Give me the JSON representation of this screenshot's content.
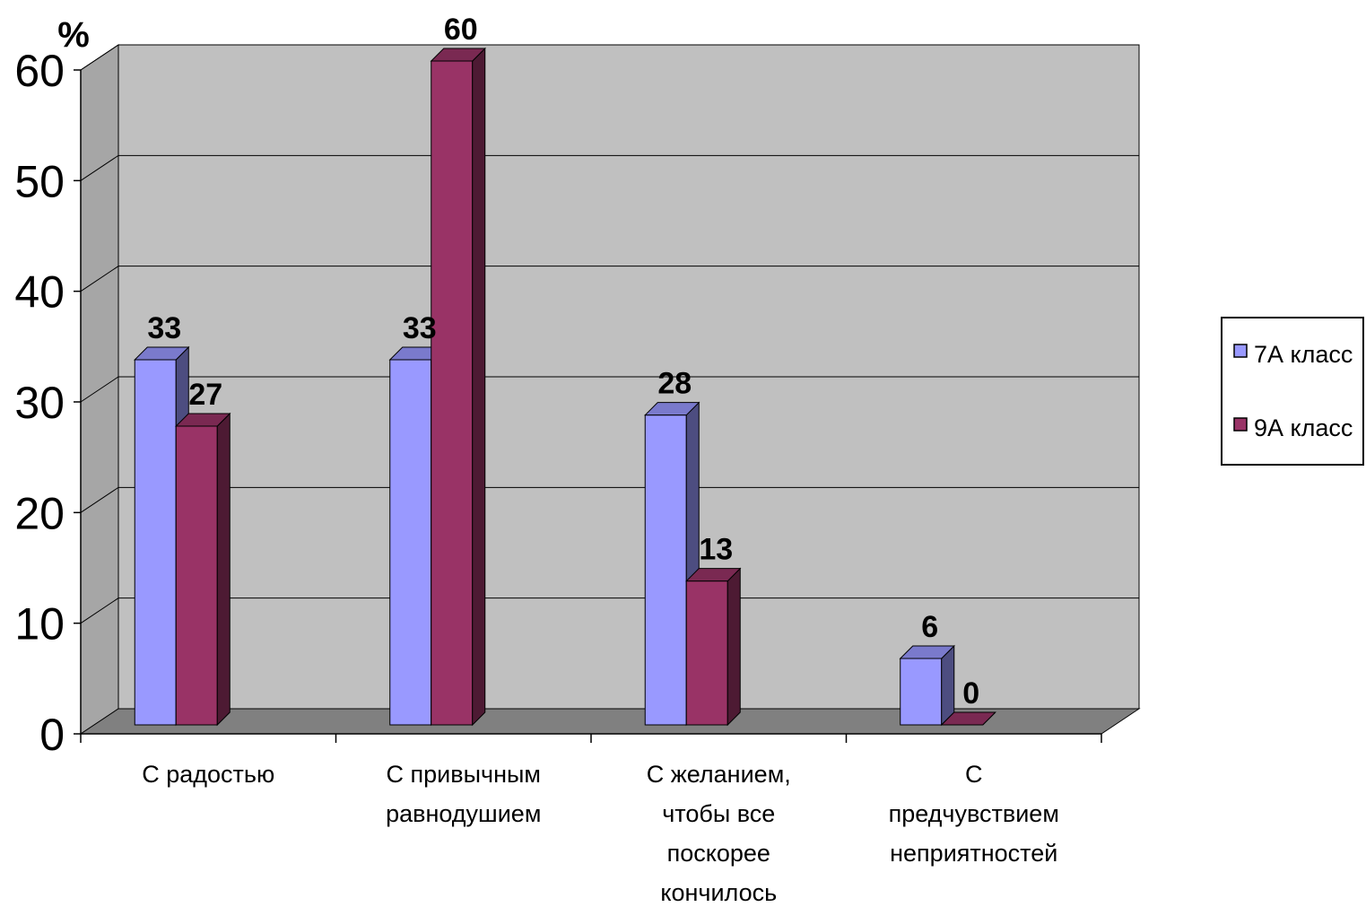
{
  "chart_data": {
    "type": "bar",
    "unit_label": "%",
    "categories": [
      [
        "С радостью"
      ],
      [
        "С привычным",
        "равнодушием"
      ],
      [
        "С желанием,",
        "чтобы все",
        "поскорее",
        "кончилось"
      ],
      [
        "С",
        "предчувствием",
        "неприятностей"
      ]
    ],
    "series": [
      {
        "name": "7А класс",
        "values": [
          33,
          33,
          28,
          6
        ],
        "color": "#9999ff",
        "side_color": "#4d4d80",
        "top_color": "#7a7acc"
      },
      {
        "name": "9А класс",
        "values": [
          27,
          60,
          13,
          0
        ],
        "color": "#993366",
        "side_color": "#4d1a33",
        "top_color": "#7a2952"
      }
    ],
    "ylim": [
      0,
      60
    ],
    "yticks": [
      0,
      10,
      20,
      30,
      40,
      50,
      60
    ],
    "grid": true,
    "legend_position": "right",
    "wall_color": "#c0c0c0",
    "floor_color": "#808080"
  }
}
